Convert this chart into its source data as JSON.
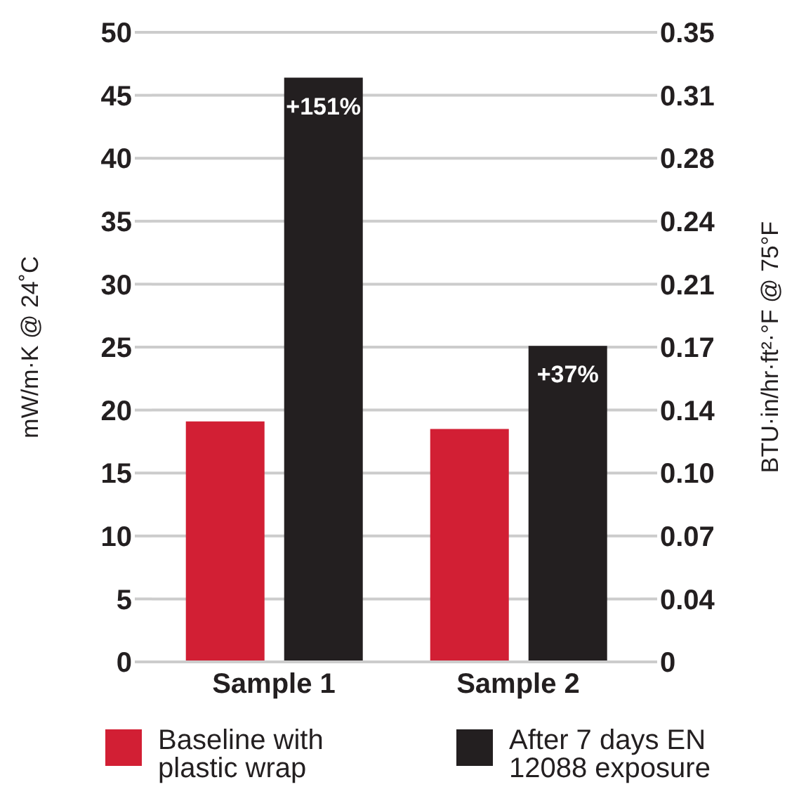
{
  "chart_data": {
    "type": "bar",
    "categories": [
      "Sample 1",
      "Sample 2"
    ],
    "series": [
      {
        "name": "Baseline with plastic wrap",
        "color": "#d21f34",
        "values": [
          19.1,
          18.5
        ]
      },
      {
        "name": "After 7 days EN 12088 exposure",
        "color": "#231f20",
        "values": [
          46.4,
          25.1
        ]
      }
    ],
    "annotations": [
      "+151%",
      "+37%"
    ],
    "ylabel": "mW/m·K @ 24˚C",
    "y2label": "BTU·in/hr·ft²·°F @ 75°F",
    "ylim": [
      0,
      50
    ],
    "yticks": [
      0,
      5,
      10,
      15,
      20,
      25,
      30,
      35,
      40,
      45,
      50
    ],
    "y2lim": [
      0,
      0.35
    ],
    "y2ticks": [
      0,
      {
        "value": 0.035,
        "label": "0.04"
      },
      0.07,
      {
        "value": 0.105,
        "label": "0.10"
      },
      0.14,
      {
        "value": 0.175,
        "label": "0.17"
      },
      0.21,
      {
        "value": 0.245,
        "label": "0.24"
      },
      0.28,
      {
        "value": 0.315,
        "label": "0.31"
      },
      0.35
    ],
    "grid": "y",
    "legend": "bottom"
  }
}
